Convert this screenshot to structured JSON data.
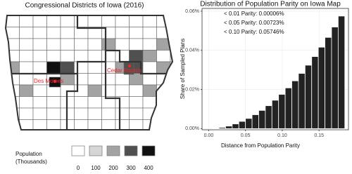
{
  "chart_data": [
    {
      "type": "map",
      "title": "Congressional Districts of Iowa (2016)",
      "cities": [
        "Des Moines",
        "Cedar Rapids"
      ],
      "legend_title": [
        "Population",
        "(Thousands)"
      ],
      "legend_ticks": [
        0,
        100,
        200,
        300,
        400
      ],
      "legend_colors": [
        "#ffffff",
        "#d6d6d6",
        "#a3a3a3",
        "#505050",
        "#111111"
      ],
      "city_color": "#e8282b"
    },
    {
      "type": "histogram",
      "title": "Distribution of Population Parity on Iowa Map",
      "x_label": "Distance from Population Parity",
      "y_label": "Share of Sampled Plans",
      "annotations": [
        "< 0.01 Parity: 0.00006%",
        "< 0.05 Parity: 0.00723%",
        "< 0.10 Parity: 0.05746%"
      ],
      "bins": [
        0.005,
        0.014,
        0.023,
        0.032,
        0.041,
        0.05,
        0.059,
        0.068,
        0.077,
        0.086,
        0.095,
        0.104,
        0.113,
        0.122,
        0.131,
        0.14,
        0.149,
        0.158,
        0.167,
        0.176,
        0.185
      ],
      "values": [
        0.00016,
        0.0006,
        0.0013,
        0.0024,
        0.0037,
        0.0052,
        0.0071,
        0.0093,
        0.0117,
        0.0145,
        0.0175,
        0.0208,
        0.0244,
        0.0282,
        0.0324,
        0.0368,
        0.0416,
        0.0466,
        0.0519,
        0.0575
      ],
      "color": "#222222",
      "xlim": [
        -0.009,
        0.19
      ],
      "ylim": [
        -0.0006,
        0.0614
      ],
      "xticks": [
        {
          "value": 0,
          "label": "0.00"
        },
        {
          "value": 0.05,
          "label": "0.05"
        },
        {
          "value": 0.1,
          "label": "0.10"
        },
        {
          "value": 0.15,
          "label": "0.15"
        }
      ],
      "yticks": [
        {
          "value": 0,
          "label": "0.00%"
        },
        {
          "value": 0.02,
          "label": "0.02%"
        },
        {
          "value": 0.04,
          "label": "0.04%"
        },
        {
          "value": 0.06,
          "label": "0.06%"
        }
      ],
      "grid": true
    }
  ]
}
